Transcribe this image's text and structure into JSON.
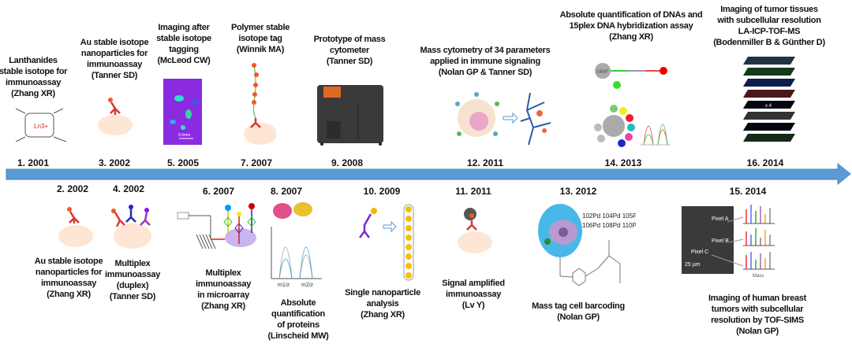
{
  "colors": {
    "arrow": "#5b9bd5",
    "cell": "#fde6d3",
    "antibody": "#d93636",
    "particle": "#f05a1e"
  },
  "top": [
    {
      "year": "1. 2001",
      "lines": [
        "Lanthanides",
        "stable isotope for",
        "immunoassay",
        "(Zhang XR)"
      ],
      "figure_label": "Ln3+"
    },
    {
      "year": "3. 2002",
      "lines": [
        "Au  stable isotope",
        "nanoparticles for",
        "immunoassay",
        "(Tanner SD)"
      ]
    },
    {
      "year": "5. 2005",
      "lines": [
        "Imaging after",
        "stable isotope",
        "tagging",
        "(McLeod CW)"
      ],
      "figure_label": "0.5mm"
    },
    {
      "year": "7. 2007",
      "lines": [
        "Polymer stable",
        "isotope tag",
        "(Winnik MA)"
      ]
    },
    {
      "year": "9. 2008",
      "lines": [
        "Prototype of mass",
        "cytometer",
        "(Tanner SD)"
      ]
    },
    {
      "year": "12. 2011",
      "lines": [
        "Mass cytometry of 34 parameters",
        "applied in immune signaling",
        "(Nolan GP & Tanner SD)"
      ]
    },
    {
      "year": "14. 2013",
      "lines": [
        "Absolute quantification of DNAs and",
        "15plex DNA hybridization assay",
        "(Zhang XR)"
      ],
      "figure_label": "MMP"
    },
    {
      "year": "16. 2014",
      "lines": [
        "Imaging of tumor tissues",
        "with subcellular resolution",
        "LA-ICP-TOF-MS",
        "(Bodenmiller B & Günther D)"
      ],
      "figure_label": "x 4"
    }
  ],
  "bottom": [
    {
      "year": "2. 2002",
      "lines": [
        "Au  stable isotope",
        "nanoparticles for",
        "immunoassay",
        "(Zhang XR)"
      ]
    },
    {
      "year": "4. 2002",
      "lines": [
        "Multiplex",
        "immunoassay",
        "(duplex)",
        "(Tanner SD)"
      ]
    },
    {
      "year": "6. 2007",
      "lines": [
        "Multiplex",
        "immunoassay",
        "in microarray",
        "(Zhang XR)"
      ]
    },
    {
      "year": "8. 2007",
      "lines": [
        "Absolute",
        "quantification",
        "of proteins",
        "(Linscheid MW)"
      ],
      "figure_labels": [
        "m1/z",
        "m2/z"
      ]
    },
    {
      "year": "10. 2009",
      "lines": [
        "Single nanoparticle",
        "analysis",
        "(Zhang XR)"
      ]
    },
    {
      "year": "11. 2011",
      "lines": [
        "Signal amplified",
        "immunoassay",
        "(Lv Y)"
      ]
    },
    {
      "year": "13. 2012",
      "lines": [
        "Mass tag cell barcoding",
        "(Nolan GP)"
      ],
      "figure_labels": [
        "102Pd 104Pd 105Pd",
        "106Pd 108Pd 110Pd"
      ]
    },
    {
      "year": "15. 2014",
      "lines": [
        "Imaging of human breast",
        "tumors with subcellular",
        "resolution by TOF-SIMS",
        "(Nolan GP)"
      ],
      "figure_labels": [
        "Pixel A",
        "Pixel B",
        "Pixel C",
        "25 µm",
        "Mass"
      ]
    }
  ]
}
